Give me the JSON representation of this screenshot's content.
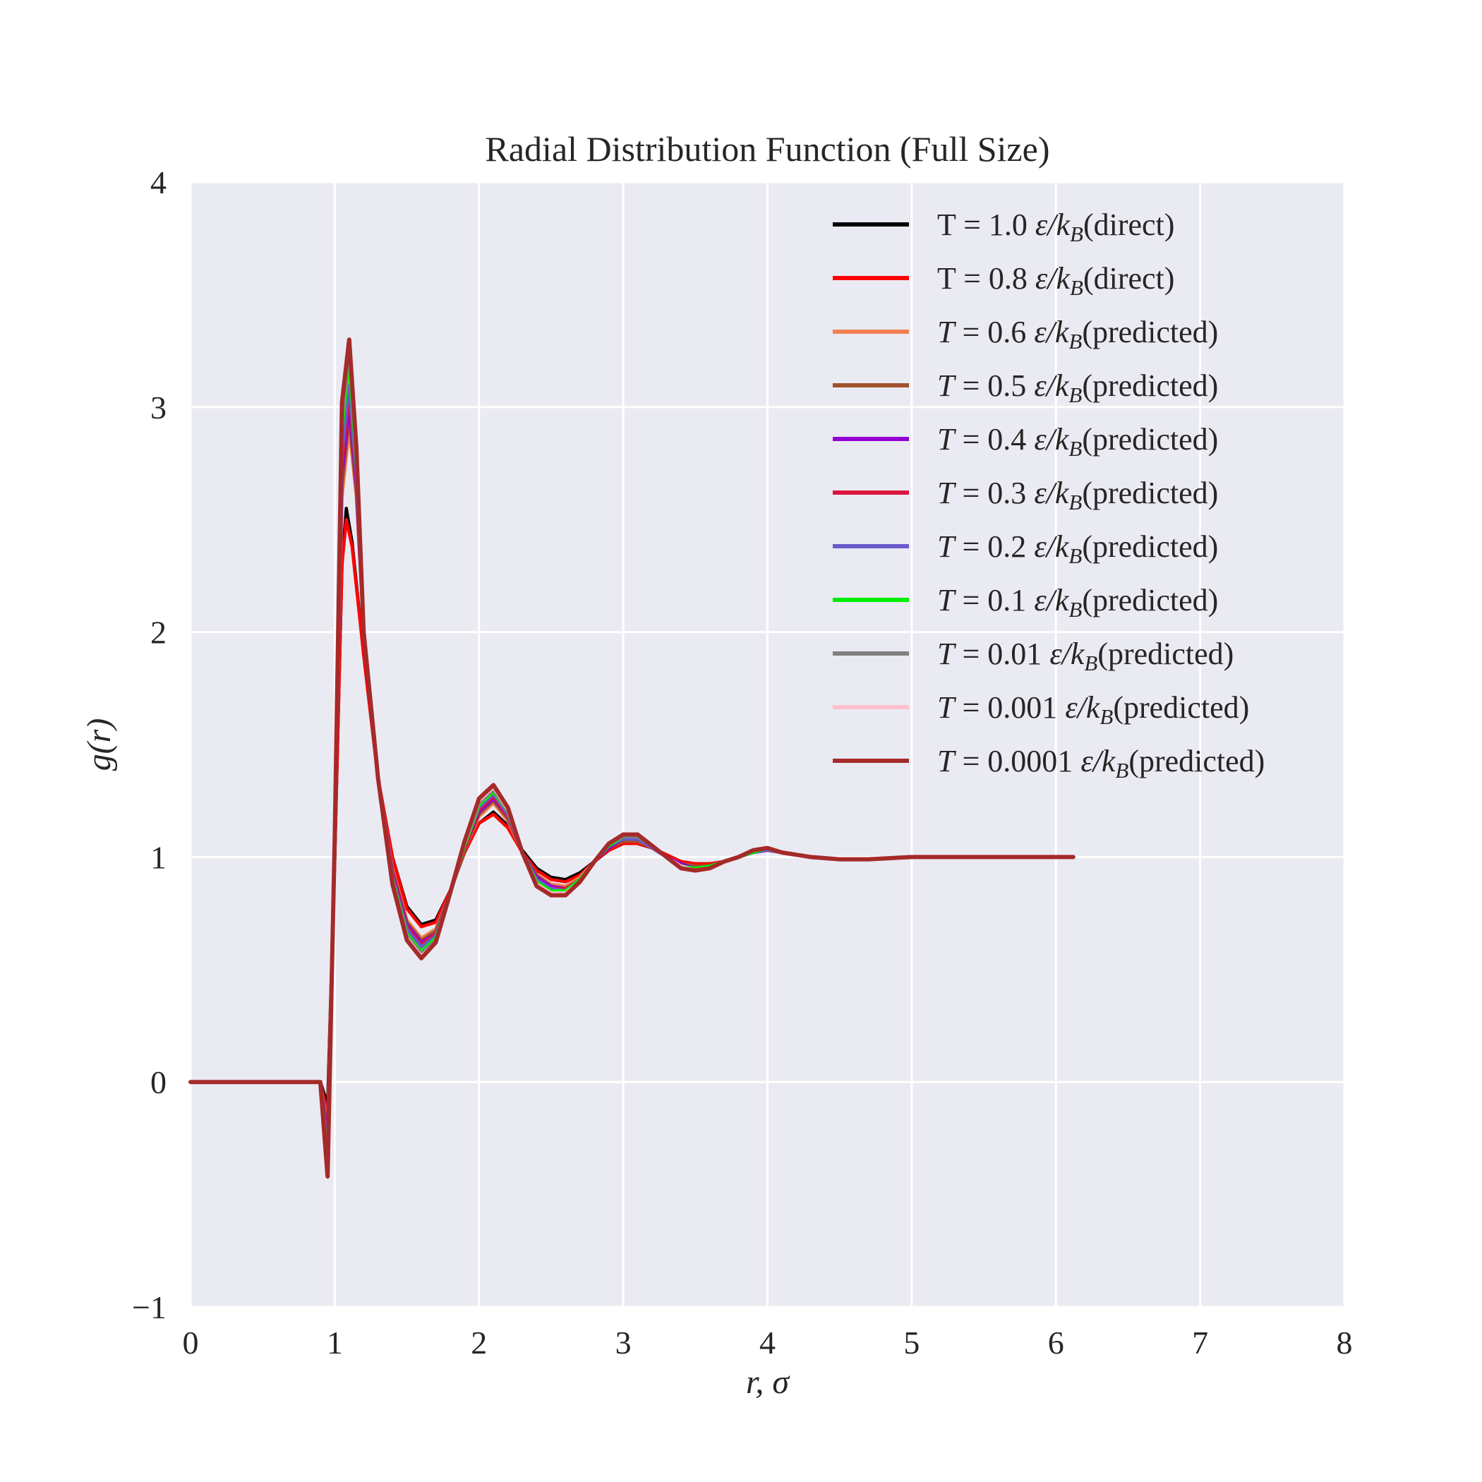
{
  "chart_data": {
    "type": "line",
    "title": "Radial Distribution Function (Full Size)",
    "xlabel": "r, σ",
    "ylabel": "g(r)",
    "xlim": [
      0,
      8
    ],
    "ylim": [
      -1,
      4
    ],
    "xticks": [
      0,
      1,
      2,
      3,
      4,
      5,
      6,
      7,
      8
    ],
    "yticks": [
      -1,
      0,
      1,
      2,
      3,
      4
    ],
    "xtick_labels": [
      "0",
      "1",
      "2",
      "3",
      "4",
      "5",
      "6",
      "7",
      "8"
    ],
    "ytick_labels": [
      "−1",
      "0",
      "1",
      "2",
      "3",
      "4"
    ],
    "grid": true,
    "legend_position": "top-right",
    "series": [
      {
        "name": "T = 1.0 ε/k_B(direct)",
        "color": "#000000",
        "italic_T": false,
        "x": [
          0,
          0.85,
          0.9,
          0.95,
          1.0,
          1.05,
          1.08,
          1.12,
          1.2,
          1.3,
          1.4,
          1.5,
          1.6,
          1.7,
          1.8,
          1.9,
          2.0,
          2.1,
          2.2,
          2.3,
          2.4,
          2.5,
          2.6,
          2.7,
          2.8,
          2.9,
          3.0,
          3.1,
          3.2,
          3.3,
          3.4,
          3.5,
          3.6,
          3.7,
          3.8,
          3.9,
          4.0,
          4.1,
          4.3,
          4.5,
          4.7,
          5.0,
          5.3,
          5.6,
          5.9,
          6.12
        ],
        "y": [
          0,
          0,
          0.0,
          -0.1,
          1.0,
          2.3,
          2.55,
          2.4,
          1.9,
          1.35,
          1.0,
          0.78,
          0.7,
          0.72,
          0.85,
          1.02,
          1.15,
          1.2,
          1.14,
          1.03,
          0.95,
          0.91,
          0.9,
          0.93,
          0.98,
          1.03,
          1.06,
          1.06,
          1.04,
          1.01,
          0.98,
          0.97,
          0.97,
          0.98,
          1.0,
          1.02,
          1.03,
          1.02,
          1.0,
          0.99,
          0.99,
          1.0,
          1.0,
          1.0,
          1.0,
          1.0
        ]
      },
      {
        "name": "T = 0.8 ε/k_B(direct)",
        "color": "#ff0000",
        "italic_T": false,
        "x": [
          0,
          0.85,
          0.9,
          0.95,
          1.0,
          1.05,
          1.08,
          1.12,
          1.2,
          1.3,
          1.4,
          1.5,
          1.6,
          1.7,
          1.8,
          1.9,
          2.0,
          2.1,
          2.2,
          2.3,
          2.4,
          2.5,
          2.6,
          2.7,
          2.8,
          2.9,
          3.0,
          3.1,
          3.2,
          3.3,
          3.4,
          3.5,
          3.6,
          3.7,
          3.8,
          3.9,
          4.0,
          4.1,
          4.3,
          4.5,
          4.7,
          5.0,
          5.3,
          5.6,
          5.9,
          6.12
        ],
        "y": [
          0,
          0,
          0.0,
          -0.15,
          1.0,
          2.3,
          2.5,
          2.38,
          1.9,
          1.35,
          1.0,
          0.77,
          0.69,
          0.71,
          0.85,
          1.02,
          1.15,
          1.19,
          1.13,
          1.02,
          0.94,
          0.9,
          0.89,
          0.92,
          0.98,
          1.03,
          1.06,
          1.06,
          1.04,
          1.01,
          0.98,
          0.97,
          0.97,
          0.98,
          1.0,
          1.02,
          1.03,
          1.02,
          1.0,
          0.99,
          0.99,
          1.0,
          1.0,
          1.0,
          1.0,
          1.0
        ]
      },
      {
        "name": "T = 0.6 ε/k_B(predicted)",
        "color": "#f08050",
        "italic_T": true,
        "x": [
          0,
          0.85,
          0.9,
          0.95,
          1.0,
          1.05,
          1.1,
          1.15,
          1.2,
          1.3,
          1.4,
          1.5,
          1.6,
          1.7,
          1.8,
          1.9,
          2.0,
          2.1,
          2.2,
          2.3,
          2.4,
          2.5,
          2.6,
          2.7,
          2.8,
          2.9,
          3.0,
          3.1,
          3.2,
          3.3,
          3.4,
          3.5,
          3.6,
          3.7,
          3.8,
          3.9,
          4.0,
          4.1,
          4.3,
          4.5,
          4.7,
          5.0,
          5.3,
          5.6,
          5.9,
          6.12
        ],
        "y": [
          0,
          0,
          0.0,
          -0.2,
          1.1,
          2.6,
          2.9,
          2.6,
          2.0,
          1.35,
          0.95,
          0.72,
          0.64,
          0.68,
          0.84,
          1.03,
          1.18,
          1.24,
          1.16,
          1.02,
          0.92,
          0.88,
          0.87,
          0.91,
          0.98,
          1.04,
          1.07,
          1.07,
          1.04,
          1.0,
          0.97,
          0.96,
          0.96,
          0.98,
          1.0,
          1.02,
          1.03,
          1.02,
          1.0,
          0.99,
          0.99,
          1.0,
          1.0,
          1.0,
          1.0,
          1.0
        ]
      },
      {
        "name": "T = 0.5 ε/k_B(predicted)",
        "color": "#a0522d",
        "italic_T": true,
        "x": [
          0,
          0.85,
          0.9,
          0.95,
          1.0,
          1.05,
          1.1,
          1.15,
          1.2,
          1.3,
          1.4,
          1.5,
          1.6,
          1.7,
          1.8,
          1.9,
          2.0,
          2.1,
          2.2,
          2.3,
          2.4,
          2.5,
          2.6,
          2.7,
          2.8,
          2.9,
          3.0,
          3.1,
          3.2,
          3.3,
          3.4,
          3.5,
          3.6,
          3.7,
          3.8,
          3.9,
          4.0,
          4.1,
          4.3,
          4.5,
          4.7,
          5.0,
          5.3,
          5.6,
          5.9,
          6.12
        ],
        "y": [
          0,
          0,
          0.0,
          -0.22,
          1.1,
          2.65,
          2.95,
          2.62,
          2.0,
          1.35,
          0.94,
          0.71,
          0.63,
          0.67,
          0.84,
          1.03,
          1.19,
          1.25,
          1.17,
          1.02,
          0.92,
          0.87,
          0.86,
          0.9,
          0.98,
          1.04,
          1.07,
          1.07,
          1.04,
          1.0,
          0.97,
          0.96,
          0.96,
          0.98,
          1.0,
          1.02,
          1.03,
          1.02,
          1.0,
          0.99,
          0.99,
          1.0,
          1.0,
          1.0,
          1.0,
          1.0
        ]
      },
      {
        "name": "T = 0.4 ε/k_B(predicted)",
        "color": "#9400d3",
        "italic_T": true,
        "x": [
          0,
          0.85,
          0.9,
          0.95,
          1.0,
          1.05,
          1.1,
          1.15,
          1.2,
          1.3,
          1.4,
          1.5,
          1.6,
          1.7,
          1.8,
          1.9,
          2.0,
          2.1,
          2.2,
          2.3,
          2.4,
          2.5,
          2.6,
          2.7,
          2.8,
          2.9,
          3.0,
          3.1,
          3.2,
          3.3,
          3.4,
          3.5,
          3.6,
          3.7,
          3.8,
          3.9,
          4.0,
          4.1,
          4.3,
          4.5,
          4.7,
          5.0,
          5.3,
          5.6,
          5.9,
          6.12
        ],
        "y": [
          0,
          0,
          0.0,
          -0.25,
          1.1,
          2.7,
          3.0,
          2.65,
          2.0,
          1.35,
          0.93,
          0.7,
          0.62,
          0.66,
          0.84,
          1.04,
          1.2,
          1.26,
          1.18,
          1.02,
          0.91,
          0.87,
          0.86,
          0.9,
          0.98,
          1.04,
          1.08,
          1.08,
          1.04,
          1.0,
          0.97,
          0.95,
          0.96,
          0.98,
          1.0,
          1.02,
          1.03,
          1.02,
          1.0,
          0.99,
          0.99,
          1.0,
          1.0,
          1.0,
          1.0,
          1.0
        ]
      },
      {
        "name": "T = 0.3 ε/k_B(predicted)",
        "color": "#dc143c",
        "italic_T": true,
        "x": [
          0,
          0.85,
          0.9,
          0.95,
          1.0,
          1.05,
          1.1,
          1.15,
          1.2,
          1.3,
          1.4,
          1.5,
          1.6,
          1.7,
          1.8,
          1.9,
          2.0,
          2.1,
          2.2,
          2.3,
          2.4,
          2.5,
          2.6,
          2.7,
          2.8,
          2.9,
          3.0,
          3.1,
          3.2,
          3.3,
          3.4,
          3.5,
          3.6,
          3.7,
          3.8,
          3.9,
          4.0,
          4.1,
          4.3,
          4.5,
          4.7,
          5.0,
          5.3,
          5.6,
          5.9,
          6.12
        ],
        "y": [
          0,
          0,
          0.0,
          -0.28,
          1.1,
          2.75,
          3.05,
          2.68,
          2.0,
          1.35,
          0.92,
          0.69,
          0.61,
          0.66,
          0.84,
          1.04,
          1.21,
          1.27,
          1.18,
          1.02,
          0.9,
          0.86,
          0.86,
          0.9,
          0.98,
          1.05,
          1.08,
          1.08,
          1.04,
          1.0,
          0.96,
          0.95,
          0.96,
          0.98,
          1.0,
          1.02,
          1.03,
          1.02,
          1.0,
          0.99,
          0.99,
          1.0,
          1.0,
          1.0,
          1.0,
          1.0
        ]
      },
      {
        "name": "T = 0.2 ε/k_B(predicted)",
        "color": "#6a5acd",
        "italic_T": true,
        "x": [
          0,
          0.85,
          0.9,
          0.95,
          1.0,
          1.05,
          1.1,
          1.15,
          1.2,
          1.3,
          1.4,
          1.5,
          1.6,
          1.7,
          1.8,
          1.9,
          2.0,
          2.1,
          2.2,
          2.3,
          2.4,
          2.5,
          2.6,
          2.7,
          2.8,
          2.9,
          3.0,
          3.1,
          3.2,
          3.3,
          3.4,
          3.5,
          3.6,
          3.7,
          3.8,
          3.9,
          4.0,
          4.1,
          4.3,
          4.5,
          4.7,
          5.0,
          5.3,
          5.6,
          5.9,
          6.12
        ],
        "y": [
          0,
          0,
          0.0,
          -0.3,
          1.1,
          2.8,
          3.1,
          2.7,
          2.0,
          1.35,
          0.91,
          0.68,
          0.6,
          0.65,
          0.84,
          1.05,
          1.22,
          1.28,
          1.19,
          1.02,
          0.9,
          0.86,
          0.85,
          0.9,
          0.98,
          1.05,
          1.08,
          1.08,
          1.04,
          1.0,
          0.96,
          0.95,
          0.96,
          0.98,
          1.0,
          1.02,
          1.03,
          1.02,
          1.0,
          0.99,
          0.99,
          1.0,
          1.0,
          1.0,
          1.0,
          1.0
        ]
      },
      {
        "name": "T = 0.1 ε/k_B(predicted)",
        "color": "#00ee00",
        "italic_T": true,
        "x": [
          0,
          0.85,
          0.9,
          0.95,
          1.0,
          1.05,
          1.1,
          1.15,
          1.2,
          1.3,
          1.4,
          1.5,
          1.6,
          1.7,
          1.8,
          1.9,
          2.0,
          2.1,
          2.2,
          2.3,
          2.4,
          2.5,
          2.6,
          2.7,
          2.8,
          2.9,
          3.0,
          3.1,
          3.2,
          3.3,
          3.4,
          3.5,
          3.6,
          3.7,
          3.8,
          3.9,
          4.0,
          4.1,
          4.3,
          4.5,
          4.7,
          5.0,
          5.3,
          5.6,
          5.9,
          6.12
        ],
        "y": [
          0,
          0,
          0.0,
          -0.35,
          1.1,
          2.9,
          3.2,
          2.75,
          2.0,
          1.35,
          0.9,
          0.66,
          0.58,
          0.64,
          0.84,
          1.05,
          1.23,
          1.29,
          1.2,
          1.02,
          0.89,
          0.85,
          0.85,
          0.9,
          0.98,
          1.05,
          1.09,
          1.09,
          1.05,
          1.0,
          0.96,
          0.95,
          0.96,
          0.98,
          1.0,
          1.02,
          1.04,
          1.02,
          1.0,
          0.99,
          0.99,
          1.0,
          1.0,
          1.0,
          1.0,
          1.0
        ]
      },
      {
        "name": "T = 0.01 ε/k_B(predicted)",
        "color": "#808080",
        "italic_T": true,
        "x": [
          0,
          0.85,
          0.9,
          0.95,
          1.0,
          1.05,
          1.1,
          1.15,
          1.2,
          1.3,
          1.4,
          1.5,
          1.6,
          1.7,
          1.8,
          1.9,
          2.0,
          2.1,
          2.2,
          2.3,
          2.4,
          2.5,
          2.6,
          2.7,
          2.8,
          2.9,
          3.0,
          3.1,
          3.2,
          3.3,
          3.4,
          3.5,
          3.6,
          3.7,
          3.8,
          3.9,
          4.0,
          4.1,
          4.3,
          4.5,
          4.7,
          5.0,
          5.3,
          5.6,
          5.9,
          6.12
        ],
        "y": [
          0,
          0,
          0.0,
          -0.38,
          1.1,
          2.95,
          3.25,
          2.78,
          2.0,
          1.35,
          0.89,
          0.65,
          0.57,
          0.63,
          0.84,
          1.06,
          1.24,
          1.3,
          1.2,
          1.02,
          0.88,
          0.84,
          0.84,
          0.89,
          0.98,
          1.06,
          1.09,
          1.09,
          1.05,
          1.0,
          0.96,
          0.94,
          0.95,
          0.98,
          1.0,
          1.03,
          1.04,
          1.02,
          1.0,
          0.99,
          0.99,
          1.0,
          1.0,
          1.0,
          1.0,
          1.0
        ]
      },
      {
        "name": "T = 0.001 ε/k_B(predicted)",
        "color": "#ffc0cb",
        "italic_T": true,
        "x": [
          0,
          0.85,
          0.9,
          0.95,
          1.0,
          1.05,
          1.1,
          1.15,
          1.2,
          1.3,
          1.4,
          1.5,
          1.6,
          1.7,
          1.8,
          1.9,
          2.0,
          2.1,
          2.2,
          2.3,
          2.4,
          2.5,
          2.6,
          2.7,
          2.8,
          2.9,
          3.0,
          3.1,
          3.2,
          3.3,
          3.4,
          3.5,
          3.6,
          3.7,
          3.8,
          3.9,
          4.0,
          4.1,
          4.3,
          4.5,
          4.7,
          5.0,
          5.3,
          5.6,
          5.9,
          6.12
        ],
        "y": [
          0,
          0,
          0.0,
          -0.4,
          1.1,
          3.0,
          3.28,
          2.8,
          2.0,
          1.35,
          0.88,
          0.64,
          0.56,
          0.62,
          0.84,
          1.06,
          1.25,
          1.31,
          1.21,
          1.02,
          0.88,
          0.84,
          0.84,
          0.89,
          0.98,
          1.06,
          1.1,
          1.1,
          1.05,
          1.0,
          0.96,
          0.94,
          0.95,
          0.98,
          1.0,
          1.03,
          1.04,
          1.02,
          1.0,
          0.99,
          0.99,
          1.0,
          1.0,
          1.0,
          1.0,
          1.0
        ]
      },
      {
        "name": "T = 0.0001 ε/k_B(predicted)",
        "color": "#a52a2a",
        "italic_T": true,
        "x": [
          0,
          0.85,
          0.9,
          0.95,
          1.0,
          1.05,
          1.1,
          1.15,
          1.2,
          1.3,
          1.4,
          1.5,
          1.6,
          1.7,
          1.8,
          1.9,
          2.0,
          2.1,
          2.2,
          2.3,
          2.4,
          2.5,
          2.6,
          2.7,
          2.8,
          2.9,
          3.0,
          3.1,
          3.2,
          3.3,
          3.4,
          3.5,
          3.6,
          3.7,
          3.8,
          3.9,
          4.0,
          4.1,
          4.3,
          4.5,
          4.7,
          5.0,
          5.3,
          5.6,
          5.9,
          6.12
        ],
        "y": [
          0,
          0,
          0.0,
          -0.42,
          1.1,
          3.02,
          3.3,
          2.82,
          2.0,
          1.35,
          0.88,
          0.63,
          0.55,
          0.62,
          0.84,
          1.07,
          1.26,
          1.32,
          1.22,
          1.02,
          0.87,
          0.83,
          0.83,
          0.89,
          0.98,
          1.06,
          1.1,
          1.1,
          1.05,
          1.0,
          0.95,
          0.94,
          0.95,
          0.98,
          1.0,
          1.03,
          1.04,
          1.02,
          1.0,
          0.99,
          0.99,
          1.0,
          1.0,
          1.0,
          1.0,
          1.0
        ]
      }
    ]
  }
}
